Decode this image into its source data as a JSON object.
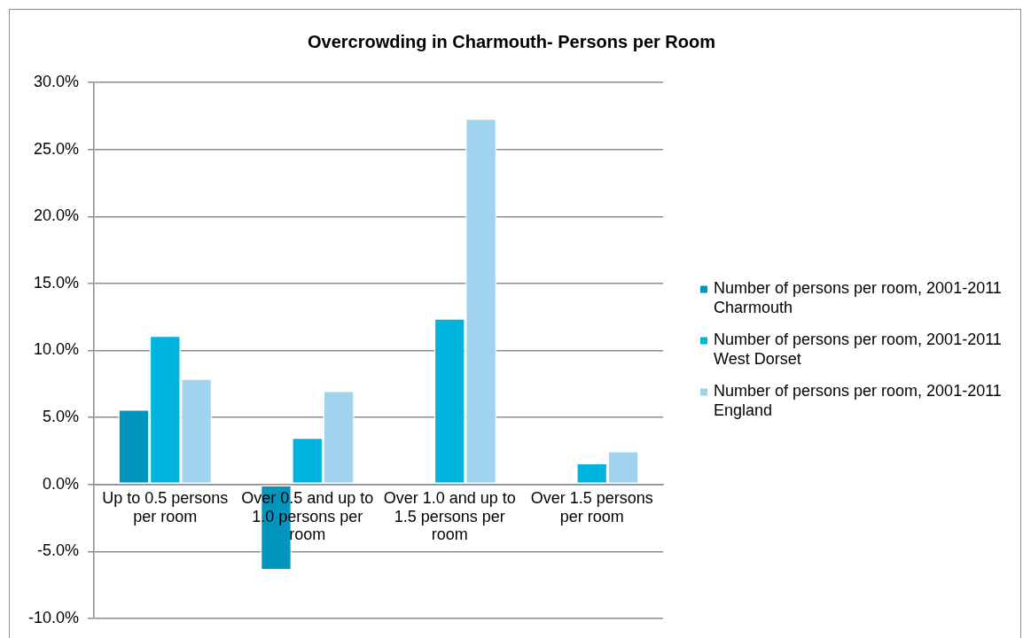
{
  "chart_data": {
    "type": "bar",
    "title": "Overcrowding in Charmouth- Persons per Room",
    "categories": [
      "Up to 0.5 persons per room",
      "Over 0.5 and up to 1.0 persons per room",
      "Over 1.0 and up to 1.5 persons per room",
      "Over 1.5 persons per room"
    ],
    "series": [
      {
        "name": "Number of persons per room, 2001-2011 Charmouth",
        "color": "#0096be",
        "values": [
          5.6,
          -6.4,
          null,
          null
        ]
      },
      {
        "name": "Number of persons per room, 2001-2011 West Dorset",
        "color": "#00b4e0",
        "values": [
          11.1,
          3.5,
          12.4,
          1.6
        ]
      },
      {
        "name": "Number of persons per room, 2001-2011 England",
        "color": "#a0d3ee",
        "values": [
          7.9,
          7.0,
          27.3,
          2.5
        ]
      }
    ],
    "ylim": [
      -10,
      30
    ],
    "yticks": [
      {
        "value": -10,
        "label": "-10.0%"
      },
      {
        "value": -5,
        "label": "-5.0%"
      },
      {
        "value": 0,
        "label": "0.0%"
      },
      {
        "value": 5,
        "label": "5.0%"
      },
      {
        "value": 10,
        "label": "10.0%"
      },
      {
        "value": 15,
        "label": "15.0%"
      },
      {
        "value": 20,
        "label": "20.0%"
      },
      {
        "value": 25,
        "label": "25.0%"
      },
      {
        "value": 30,
        "label": "30.0%"
      }
    ],
    "grid": "y",
    "legend": "right"
  }
}
